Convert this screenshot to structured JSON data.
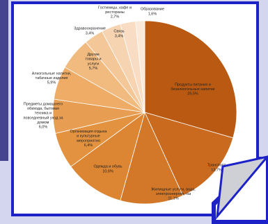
{
  "colors": {
    "frame": "#1d22c6",
    "panel": "#444491",
    "background": "#d4d5ef",
    "curl_fill": "#cfd0d6"
  },
  "chart_data": {
    "type": "pie",
    "title": "",
    "start_angle_deg": -90,
    "direction": "clockwise",
    "legend": "none",
    "slices": [
      {
        "label_lines": [
          "Продукты питания и",
          "безалкогольные напитки"
        ],
        "value_label": "29,5%",
        "value": 29.5,
        "color": "#ba5a12"
      },
      {
        "label_lines": [
          "Транспорт"
        ],
        "value_label": "13,7%",
        "value": 13.7,
        "color": "#c96a1f"
      },
      {
        "label_lines": [
          "Жилищные услуги, вода,",
          "электроэнергия, газ"
        ],
        "value_label": "11,1%",
        "value": 11.1,
        "color": "#d27828"
      },
      {
        "label_lines": [
          "Одежда и обувь"
        ],
        "value_label": "10,6%",
        "value": 10.6,
        "color": "#dc8532"
      },
      {
        "label_lines": [
          "Организация отдыха",
          "и культурные",
          "мероприятия"
        ],
        "value_label": "6,4%",
        "value": 6.4,
        "color": "#e39240"
      },
      {
        "label_lines": [
          "Предметы домашнего",
          "обихода, бытовая",
          "техника и",
          "повседневный уход за",
          "домом"
        ],
        "value_label": "6,0%",
        "value": 6.0,
        "color": "#e89e52"
      },
      {
        "label_lines": [
          "Алкогольные напитки,",
          "табачные изделия"
        ],
        "value_label": "5,9%",
        "value": 5.9,
        "color": "#eeac66"
      },
      {
        "label_lines": [
          "Другие",
          "товары и",
          "услуги"
        ],
        "value_label": "5,7%",
        "value": 5.7,
        "color": "#f1ba7f"
      },
      {
        "label_lines": [
          "Здравоохранение"
        ],
        "value_label": "3,4%",
        "value": 3.4,
        "color": "#f4c799"
      },
      {
        "label_lines": [
          "Связь"
        ],
        "value_label": "3,4%",
        "value": 3.4,
        "color": "#f6d3b1"
      },
      {
        "label_lines": [
          "Гостиницы, кафе и",
          "рестораны"
        ],
        "value_label": "2,7%",
        "value": 2.7,
        "color": "#f8ddc4"
      },
      {
        "label_lines": [
          "Образование"
        ],
        "value_label": "1,6%",
        "value": 1.6,
        "color": "#fae8d8"
      }
    ]
  }
}
